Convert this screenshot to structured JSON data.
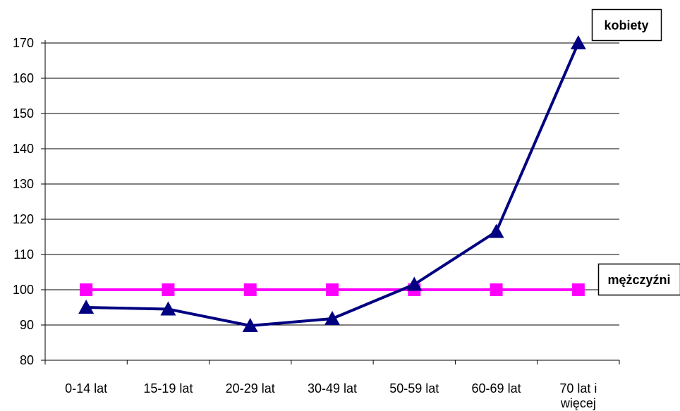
{
  "chart_data": {
    "type": "line",
    "categories": [
      "0-14 lat",
      "15-19 lat",
      "20-29 lat",
      "30-49 lat",
      "50-59 lat",
      "60-69 lat",
      "70 lat i więcej"
    ],
    "category_label_lines": [
      [
        "0-14 lat"
      ],
      [
        "15-19 lat"
      ],
      [
        "20-29 lat"
      ],
      [
        "30-49 lat"
      ],
      [
        "50-59 lat"
      ],
      [
        "60-69 lat"
      ],
      [
        "70 lat i",
        "więcej"
      ]
    ],
    "series": [
      {
        "name": "kobiety",
        "values": [
          95,
          94.5,
          89.8,
          91.8,
          101.5,
          116.5,
          170
        ],
        "color": "#000080",
        "marker": "triangle"
      },
      {
        "name": "mężczyźni",
        "values": [
          100,
          100,
          100,
          100,
          100,
          100,
          100
        ],
        "color": "#ff00ff",
        "marker": "square"
      }
    ],
    "ylim": [
      80,
      170
    ],
    "yticks": [
      80,
      90,
      100,
      110,
      120,
      130,
      140,
      150,
      160,
      170
    ],
    "grid": true,
    "legend": "labels at line ends",
    "title": "",
    "xlabel": "",
    "ylabel": ""
  }
}
